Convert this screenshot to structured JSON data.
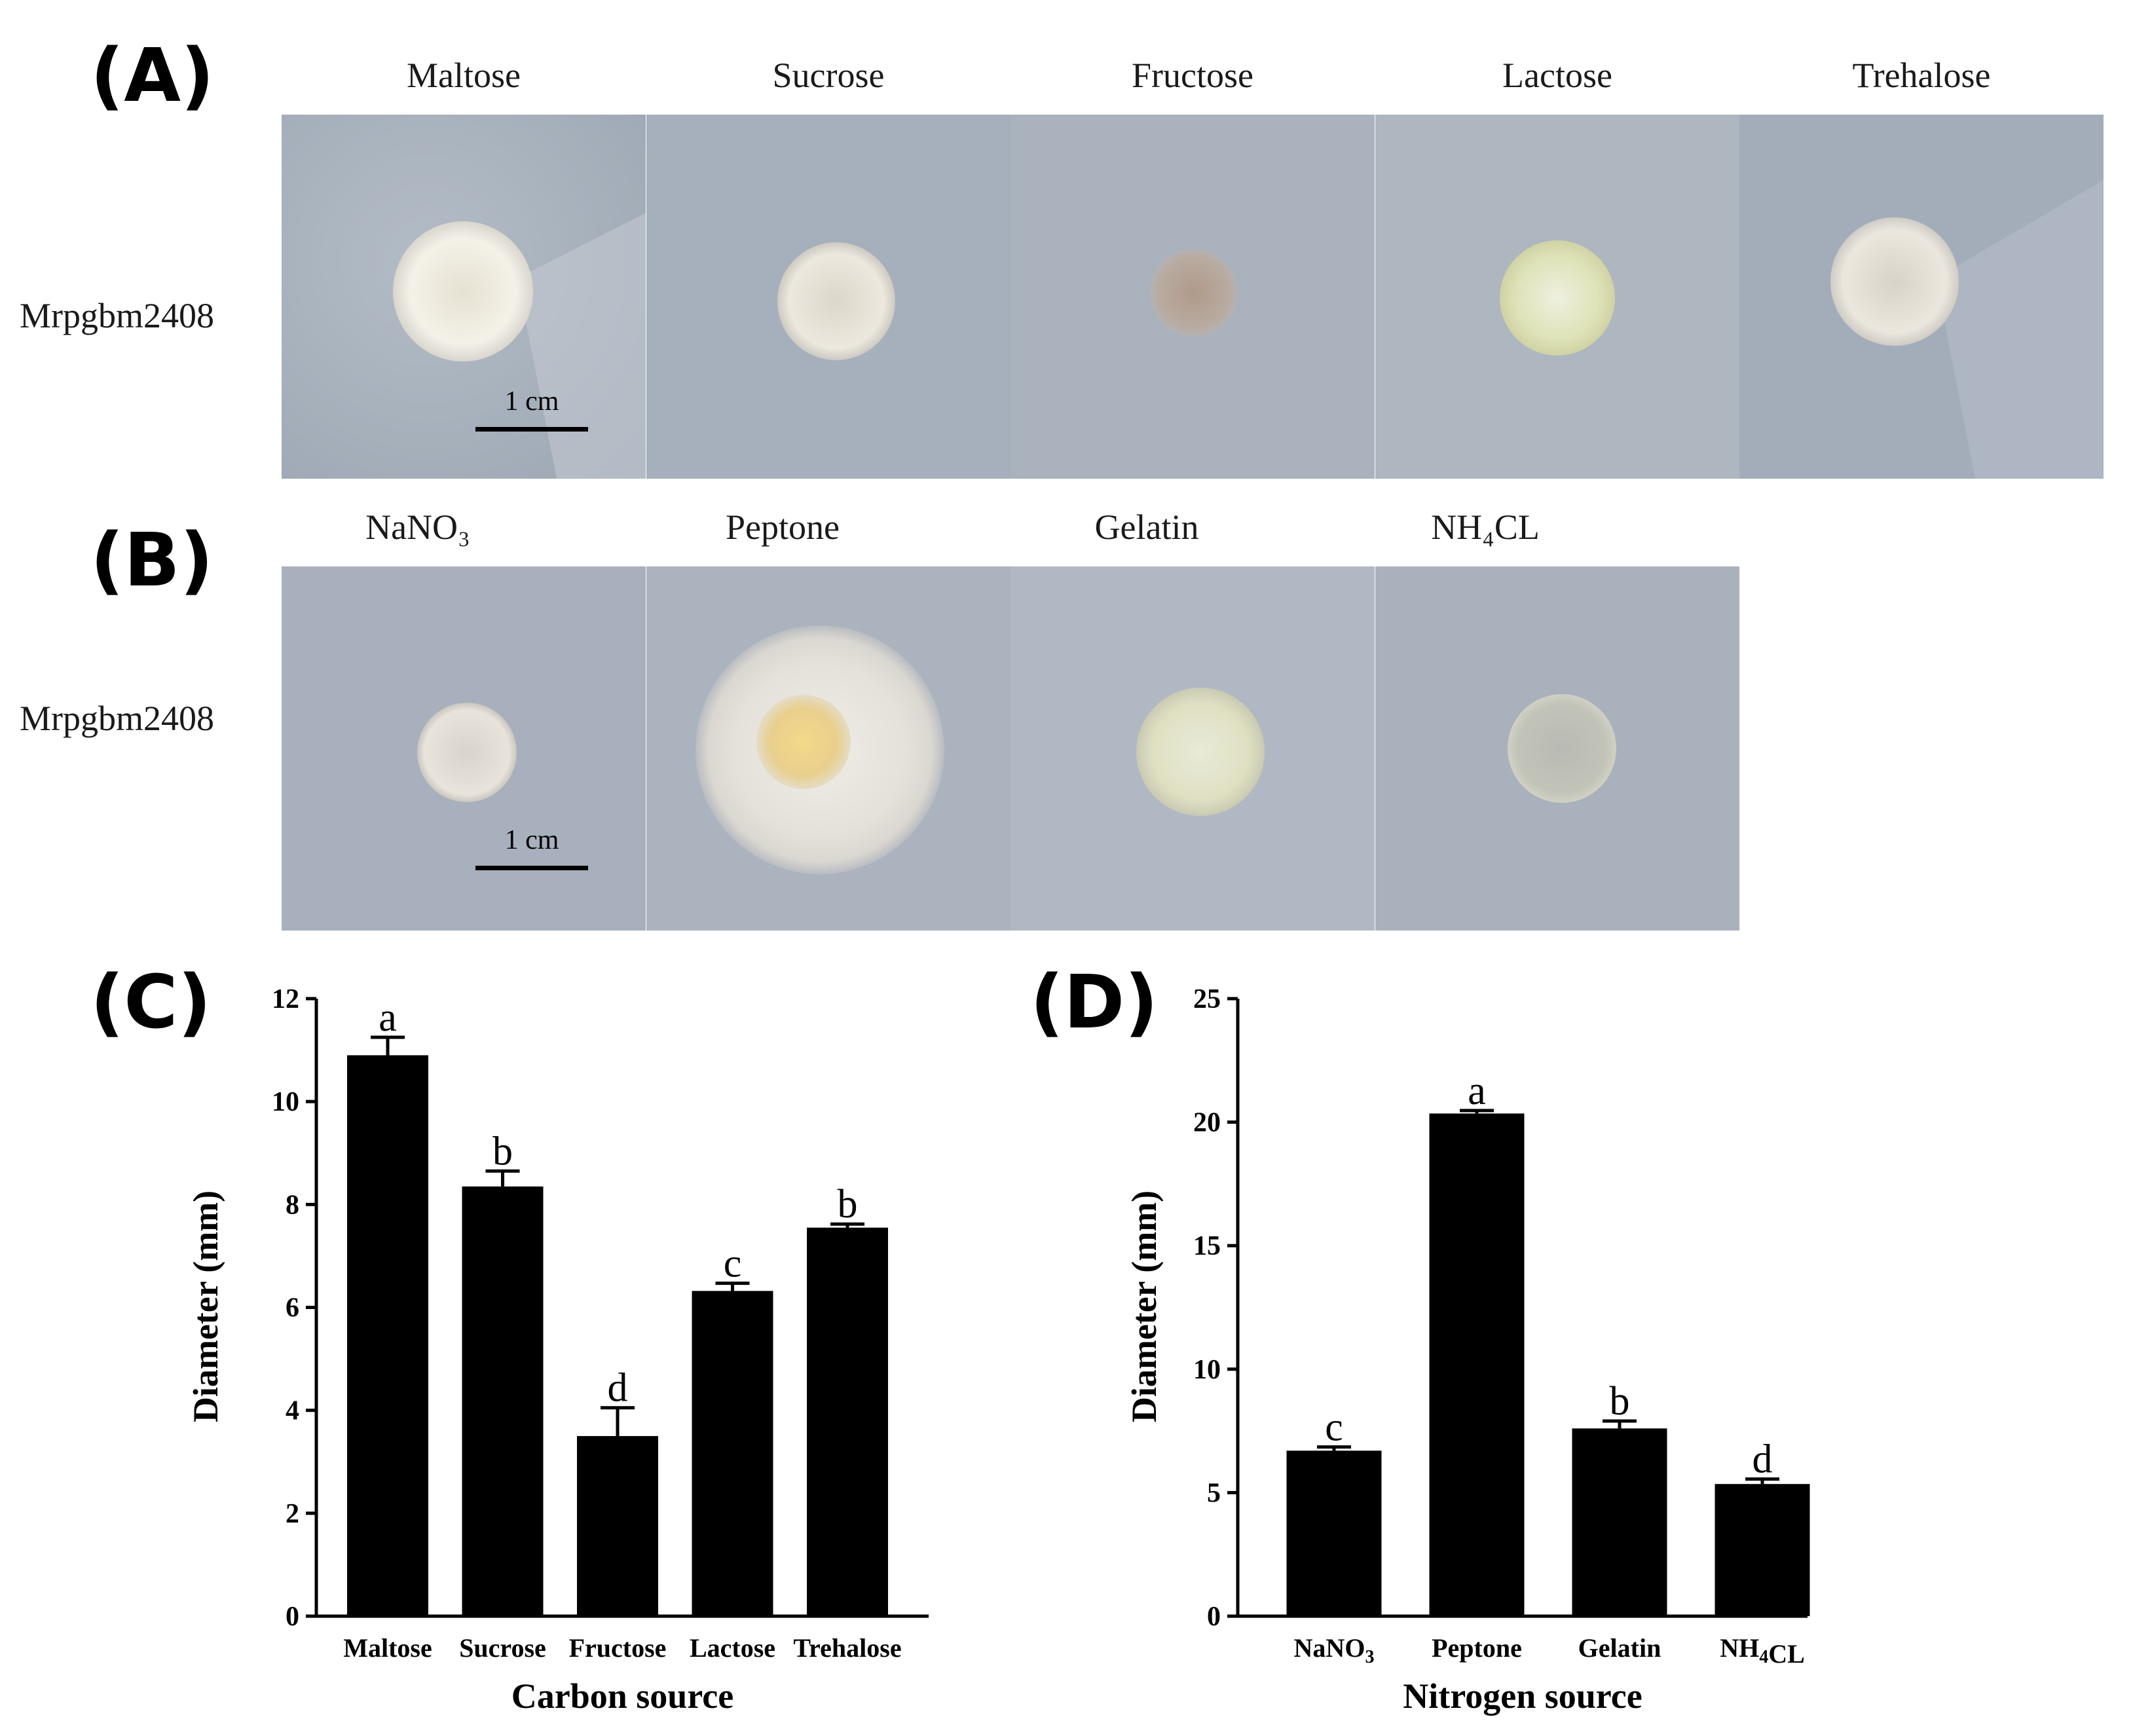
{
  "panels": {
    "A": {
      "letter": "(A)",
      "row_label": "Mrpgbm2408",
      "columns": [
        "Maltose",
        "Sucrose",
        "Fructose",
        "Lactose",
        "Trehalose"
      ],
      "scalebar": "1 cm"
    },
    "B": {
      "letter": "(B)",
      "row_label": "Mrpgbm2408",
      "columns": [
        "NaNO₃",
        "Peptone",
        "Gelatin",
        "NH₄CL"
      ],
      "scalebar": "1 cm"
    },
    "C": {
      "letter": "(C)"
    },
    "D": {
      "letter": "(D)"
    }
  },
  "colors": {
    "bar": "#000000",
    "plate_bg": "#a9b3c0",
    "colony": "#efece3"
  },
  "chart_data": [
    {
      "type": "bar",
      "panel": "C",
      "categories": [
        "Maltose",
        "Sucrose",
        "Fructose",
        "Lactose",
        "Trehalose"
      ],
      "values": [
        10.9,
        8.35,
        3.5,
        6.32,
        7.55
      ],
      "errors": [
        0.35,
        0.3,
        0.55,
        0.15,
        0.07
      ],
      "significance": [
        "a",
        "b",
        "d",
        "c",
        "b"
      ],
      "xlabel": "Carbon source",
      "ylabel": "Diameter (mm)",
      "ylim": [
        0,
        12
      ],
      "yticks": [
        "0",
        "2",
        "4",
        "6",
        "8",
        "10",
        "12"
      ]
    },
    {
      "type": "bar",
      "panel": "D",
      "categories": [
        "NaNO₃",
        "Peptone",
        "Gelatin",
        "NH₄CL"
      ],
      "values": [
        6.7,
        20.35,
        7.6,
        5.35
      ],
      "errors": [
        0.15,
        0.12,
        0.3,
        0.2
      ],
      "significance": [
        "c",
        "a",
        "b",
        "d"
      ],
      "xlabel": "Nitrogen source",
      "ylabel": "Diameter (mm)",
      "ylim": [
        0,
        25
      ],
      "yticks": [
        "0",
        "5",
        "10",
        "15",
        "20",
        "25"
      ]
    }
  ]
}
